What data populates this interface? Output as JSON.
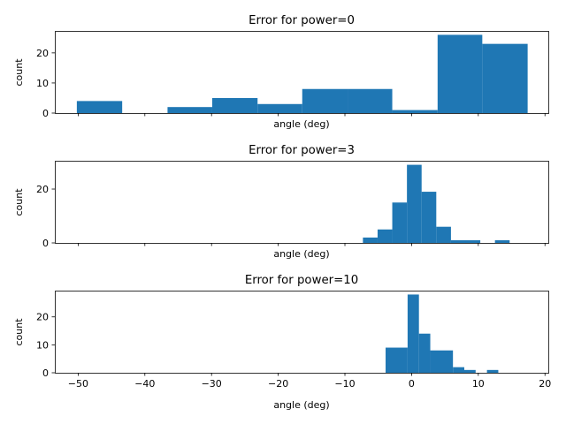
{
  "chart_data": [
    {
      "type": "bar",
      "title": "Error for power=0",
      "xlabel": "angle (deg)",
      "ylabel": "count",
      "xlim": [
        -53.5,
        20.5
      ],
      "ylim": [
        0,
        27.3
      ],
      "yticks": [
        0,
        10,
        20
      ],
      "xticks": [
        -50,
        -40,
        -30,
        -20,
        -10,
        0,
        10,
        20
      ],
      "show_xticklabels": false,
      "grid": false,
      "color": "#1f77b4",
      "bins": [
        {
          "x0": -50.2,
          "x1": -43.4,
          "count": 4
        },
        {
          "x0": -43.4,
          "x1": -36.6,
          "count": 0
        },
        {
          "x0": -36.6,
          "x1": -29.9,
          "count": 2
        },
        {
          "x0": -29.9,
          "x1": -23.1,
          "count": 5
        },
        {
          "x0": -23.1,
          "x1": -16.4,
          "count": 3
        },
        {
          "x0": -16.4,
          "x1": -9.6,
          "count": 8
        },
        {
          "x0": -9.6,
          "x1": -2.9,
          "count": 8
        },
        {
          "x0": -2.9,
          "x1": 3.9,
          "count": 1
        },
        {
          "x0": 3.9,
          "x1": 10.6,
          "count": 26
        },
        {
          "x0": 10.6,
          "x1": 17.4,
          "count": 23
        }
      ]
    },
    {
      "type": "bar",
      "title": "Error for power=3",
      "xlabel": "angle (deg)",
      "ylabel": "count",
      "xlim": [
        -53.5,
        20.5
      ],
      "ylim": [
        0,
        30.5
      ],
      "yticks": [
        0,
        20
      ],
      "xticks": [
        -50,
        -40,
        -30,
        -20,
        -10,
        0,
        10,
        20
      ],
      "show_xticklabels": false,
      "grid": false,
      "color": "#1f77b4",
      "bins": [
        {
          "x0": -7.3,
          "x1": -5.1,
          "count": 2
        },
        {
          "x0": -5.1,
          "x1": -2.9,
          "count": 5
        },
        {
          "x0": -2.9,
          "x1": -0.7,
          "count": 15
        },
        {
          "x0": -0.7,
          "x1": 1.5,
          "count": 29
        },
        {
          "x0": 1.5,
          "x1": 3.7,
          "count": 19
        },
        {
          "x0": 3.7,
          "x1": 5.9,
          "count": 6
        },
        {
          "x0": 5.9,
          "x1": 8.1,
          "count": 1
        },
        {
          "x0": 8.1,
          "x1": 10.3,
          "count": 1
        },
        {
          "x0": 10.3,
          "x1": 12.5,
          "count": 0
        },
        {
          "x0": 12.5,
          "x1": 14.7,
          "count": 1
        }
      ]
    },
    {
      "type": "bar",
      "title": "Error for power=10",
      "xlabel": "angle (deg)",
      "ylabel": "count",
      "xlim": [
        -53.5,
        20.5
      ],
      "ylim": [
        0,
        29.4
      ],
      "yticks": [
        0,
        10,
        20
      ],
      "xticks": [
        -50,
        -40,
        -30,
        -20,
        -10,
        0,
        10,
        20
      ],
      "show_xticklabels": true,
      "grid": false,
      "color": "#1f77b4",
      "bins": [
        {
          "x0": -3.9,
          "x1": -0.6,
          "count": 9
        },
        {
          "x0": -0.6,
          "x1": 1.1,
          "count": 28
        },
        {
          "x0": 1.1,
          "x1": 2.8,
          "count": 14
        },
        {
          "x0": 2.8,
          "x1": 6.2,
          "count": 8
        },
        {
          "x0": 6.2,
          "x1": 7.9,
          "count": 2
        },
        {
          "x0": 7.9,
          "x1": 9.6,
          "count": 1
        },
        {
          "x0": 9.6,
          "x1": 11.3,
          "count": 0
        },
        {
          "x0": 11.3,
          "x1": 13.0,
          "count": 1
        }
      ]
    }
  ]
}
